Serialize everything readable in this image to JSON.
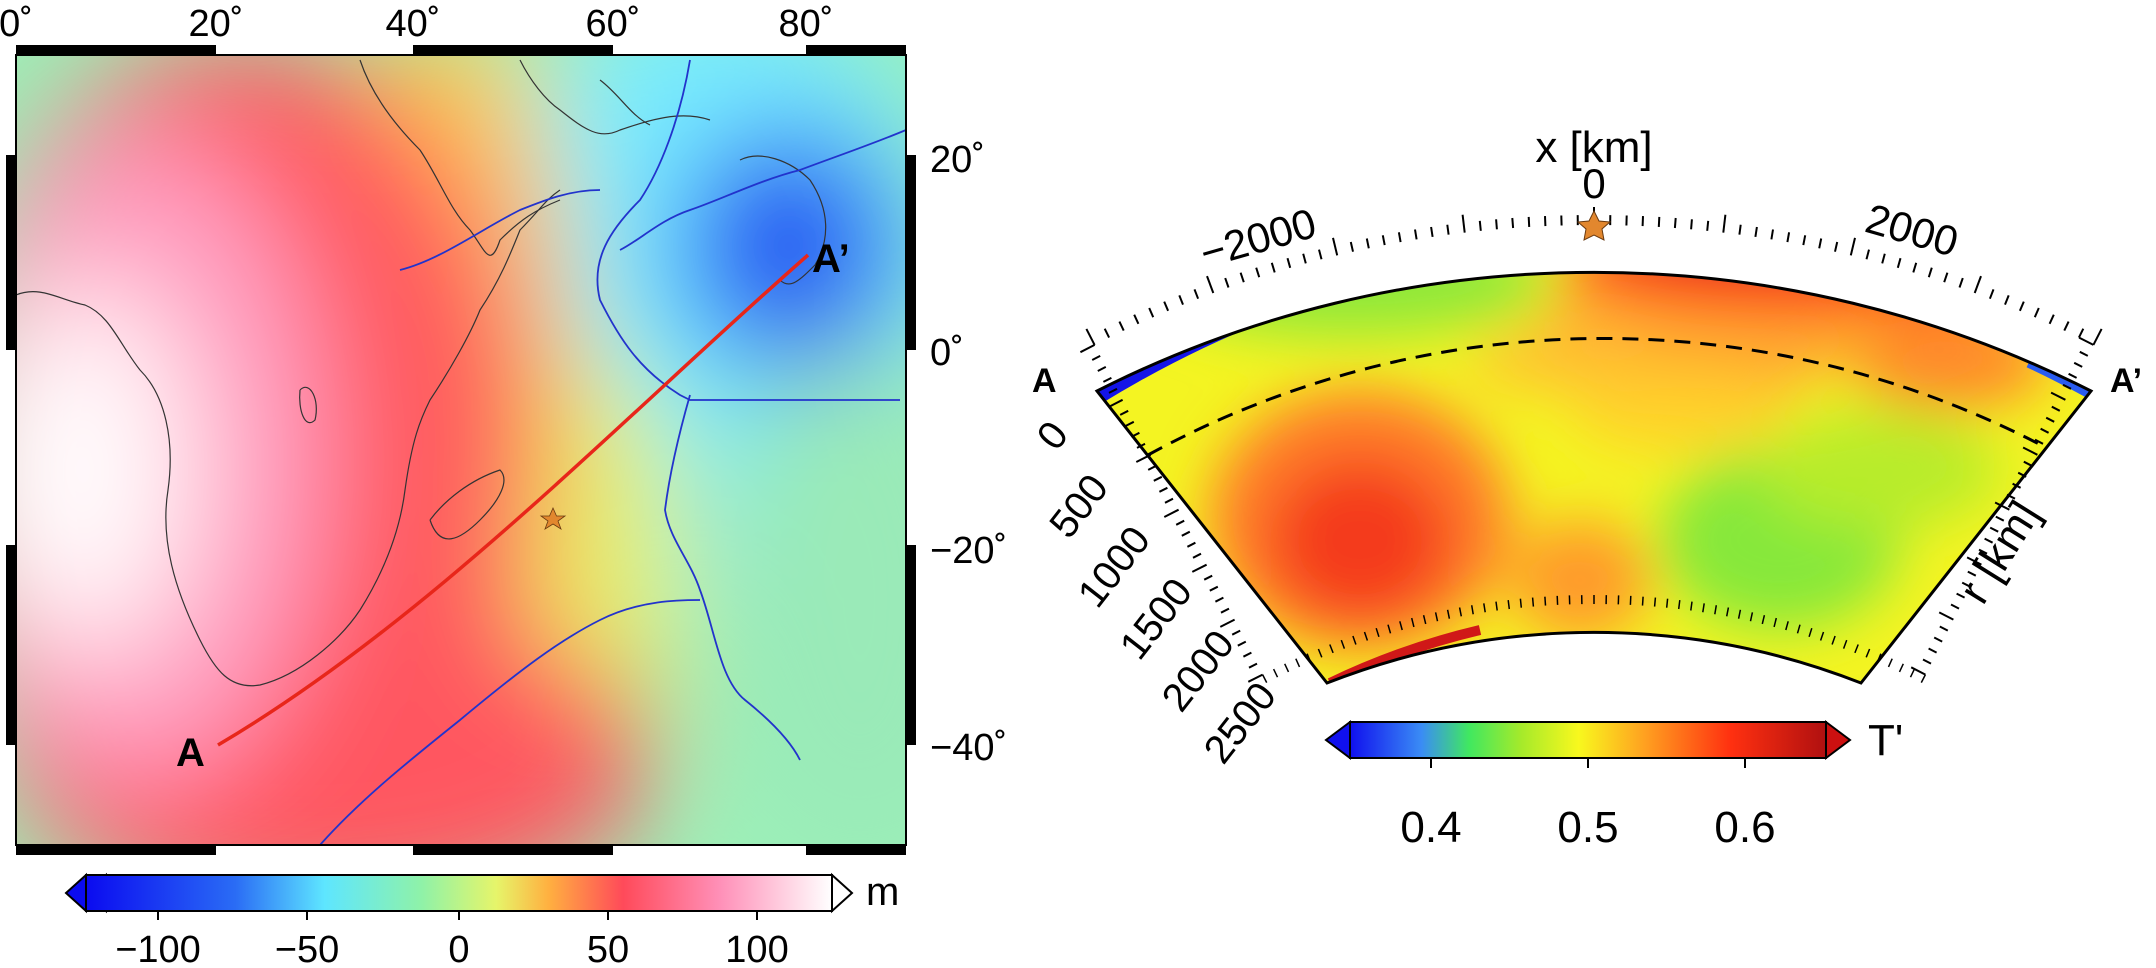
{
  "map": {
    "lon_labels": [
      "0˚",
      "20˚",
      "40˚",
      "60˚",
      "80˚"
    ],
    "lat_labels": [
      "20˚",
      "0˚",
      "−20˚",
      "−40˚"
    ],
    "point_a": "A",
    "point_a_prime": "A’",
    "colorbar": {
      "ticks": [
        "−100",
        "−50",
        "0",
        "50",
        "100"
      ],
      "unit": "m"
    }
  },
  "section": {
    "point_a": "A",
    "point_a_prime": "A’",
    "x_axis_label": "x [km]",
    "x_ticks": [
      "−2000",
      "0",
      "2000"
    ],
    "depth_axis_label": "r [km]",
    "depth_ticks": [
      "0",
      "500",
      "1000",
      "1500",
      "2000",
      "2500"
    ],
    "colorbar": {
      "ticks": [
        "0.4",
        "0.5",
        "0.6"
      ],
      "unit": "T'"
    }
  },
  "colors": {
    "profile_line": "#e8261a",
    "label_red": "#e8261a",
    "star": "#e2872e",
    "plate_boundary": "#2233cc",
    "coastline": "#333333"
  }
}
